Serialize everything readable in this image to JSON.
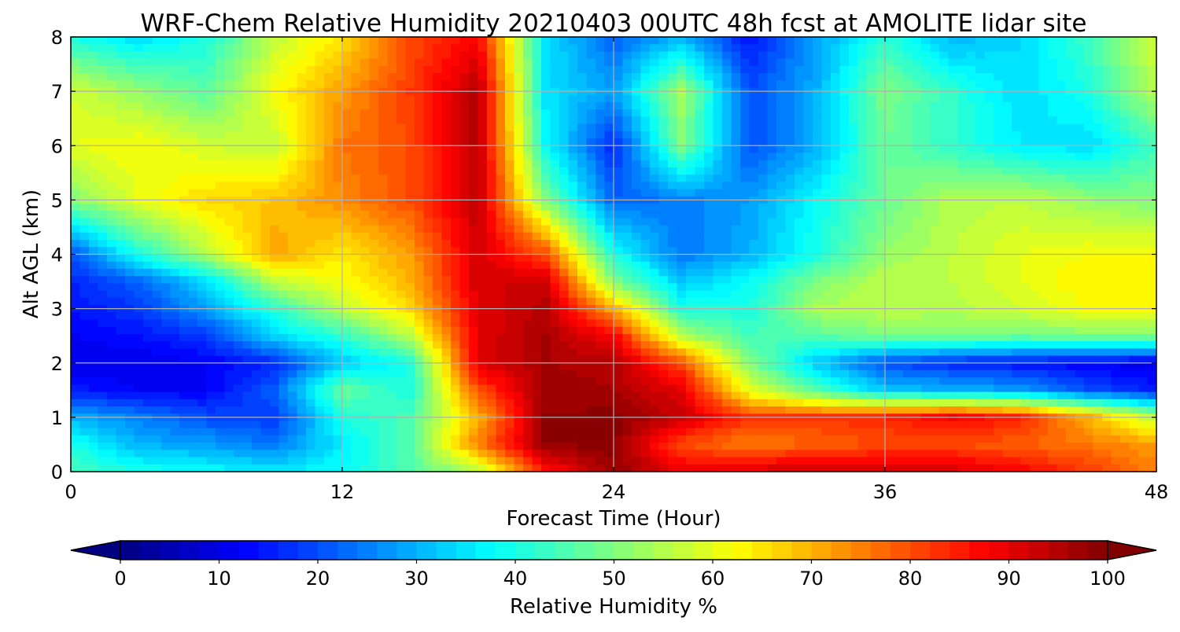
{
  "chart_data": {
    "type": "heatmap",
    "title": "WRF-Chem Relative Humidity 20210403 00UTC 48h fcst at AMOLITE lidar site",
    "xlabel": "Forecast Time (Hour)",
    "ylabel": "Alt AGL (km)",
    "xlim": [
      0,
      48
    ],
    "ylim": [
      0,
      8
    ],
    "xticks": [
      "0",
      "12",
      "24",
      "36",
      "48"
    ],
    "yticks": [
      "0",
      "1",
      "2",
      "3",
      "4",
      "5",
      "6",
      "7",
      "8"
    ],
    "grid": true,
    "colormap": "jet",
    "colorbar": {
      "label": "Relative Humidity %",
      "range": [
        0,
        100
      ],
      "ticks": [
        "0",
        "10",
        "20",
        "30",
        "40",
        "50",
        "60",
        "70",
        "80",
        "90",
        "100"
      ],
      "extend": "both",
      "orientation": "horizontal",
      "placement": "bottom"
    },
    "x": [
      0,
      3,
      6,
      9,
      12,
      15,
      18,
      21,
      24,
      27,
      30,
      33,
      36,
      39,
      42,
      45,
      48
    ],
    "y": [
      0,
      0.5,
      1,
      1.5,
      2,
      2.5,
      3,
      3.5,
      4,
      5,
      6,
      7,
      8
    ],
    "z": [
      [
        45,
        40,
        38,
        36,
        38,
        45,
        55,
        85,
        98,
        90,
        92,
        93,
        93,
        92,
        88,
        82,
        75
      ],
      [
        40,
        30,
        28,
        24,
        36,
        46,
        75,
        98,
        99,
        80,
        75,
        78,
        80,
        80,
        78,
        76,
        72
      ],
      [
        30,
        25,
        20,
        18,
        40,
        45,
        70,
        98,
        99,
        93,
        82,
        82,
        84,
        88,
        84,
        70,
        55
      ],
      [
        15,
        12,
        12,
        22,
        48,
        40,
        80,
        97,
        96,
        90,
        60,
        45,
        32,
        30,
        28,
        20,
        15
      ],
      [
        10,
        10,
        12,
        16,
        32,
        40,
        90,
        96,
        95,
        80,
        50,
        32,
        20,
        16,
        14,
        12,
        10
      ],
      [
        12,
        14,
        18,
        34,
        42,
        56,
        90,
        96,
        88,
        55,
        44,
        46,
        50,
        50,
        48,
        50,
        50
      ],
      [
        14,
        18,
        28,
        42,
        56,
        66,
        90,
        95,
        70,
        40,
        40,
        54,
        56,
        55,
        58,
        62,
        62
      ],
      [
        16,
        22,
        34,
        56,
        62,
        70,
        92,
        92,
        50,
        32,
        38,
        50,
        56,
        56,
        60,
        64,
        64
      ],
      [
        20,
        40,
        55,
        72,
        64,
        72,
        92,
        80,
        40,
        24,
        30,
        40,
        52,
        56,
        60,
        62,
        62
      ],
      [
        50,
        60,
        66,
        68,
        74,
        80,
        94,
        50,
        22,
        25,
        28,
        38,
        48,
        55,
        56,
        52,
        50
      ],
      [
        60,
        62,
        58,
        56,
        76,
        80,
        95,
        38,
        16,
        50,
        20,
        30,
        48,
        42,
        36,
        34,
        44
      ],
      [
        58,
        52,
        46,
        62,
        72,
        82,
        95,
        35,
        28,
        54,
        20,
        30,
        50,
        42,
        34,
        40,
        56
      ],
      [
        40,
        34,
        40,
        56,
        65,
        80,
        88,
        35,
        22,
        30,
        14,
        28,
        42,
        30,
        34,
        44,
        58
      ]
    ]
  }
}
